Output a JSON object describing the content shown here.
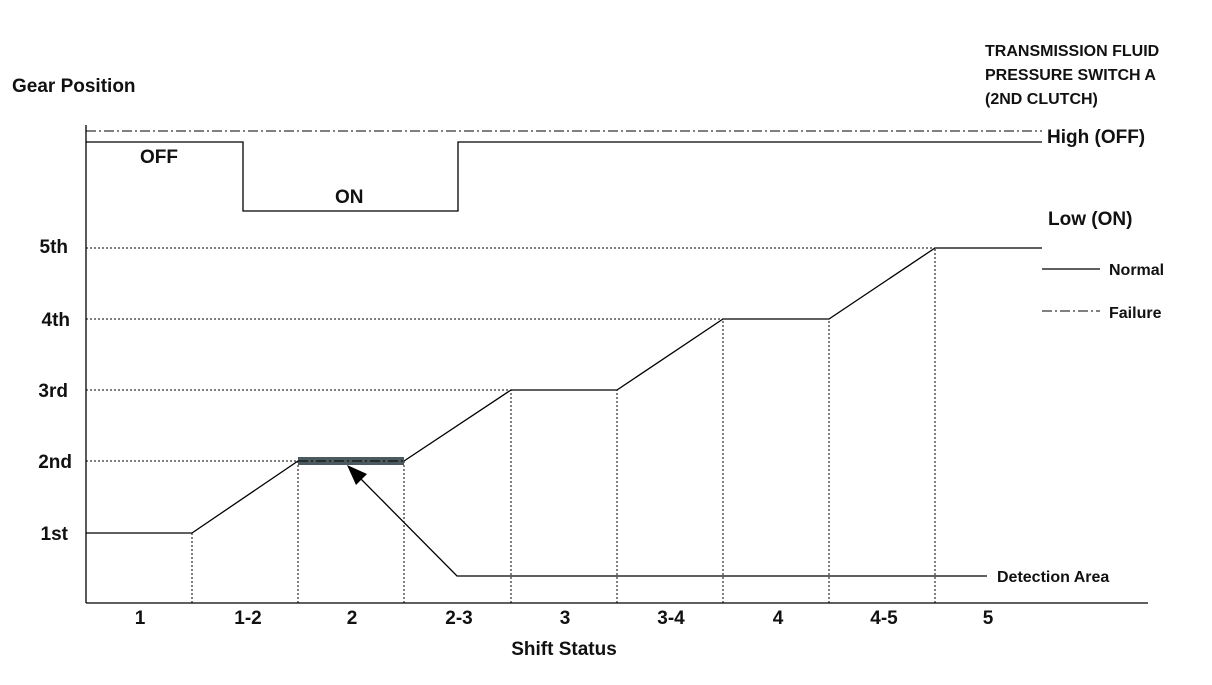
{
  "y_axis": {
    "title": "Gear Position",
    "labels": [
      "1st",
      "2nd",
      "3rd",
      "4th",
      "5th"
    ]
  },
  "x_axis": {
    "title": "Shift Status",
    "labels": [
      "1",
      "1-2",
      "2",
      "2-3",
      "3",
      "3-4",
      "4",
      "4-5",
      "5"
    ]
  },
  "switch": {
    "title_lines": [
      "TRANSMISSION FLUID",
      "PRESSURE SWITCH A",
      "(2ND CLUTCH)"
    ],
    "high": "High (OFF)",
    "low": "Low (ON)",
    "off": "OFF",
    "on": "ON"
  },
  "legend": {
    "normal": "Normal",
    "failure": "Failure"
  },
  "annotation": "Detection Area"
}
